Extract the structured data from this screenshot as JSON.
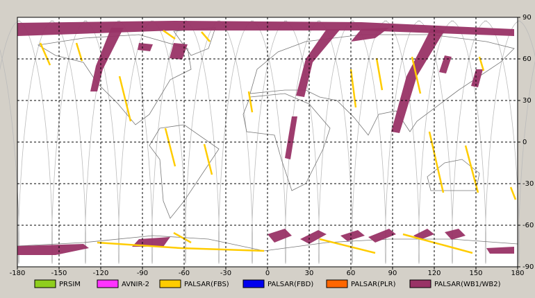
{
  "chart_data": {
    "type": "map",
    "xlim": [
      -180,
      180
    ],
    "ylim": [
      -90,
      90
    ],
    "xticks": [
      -180,
      -150,
      -120,
      -90,
      -60,
      -30,
      0,
      30,
      60,
      90,
      120,
      150,
      180
    ],
    "yticks": [
      -90,
      -60,
      -30,
      0,
      30,
      60,
      90
    ],
    "grid": true,
    "series": [
      {
        "name": "PRSIM",
        "color": "#8fce1e"
      },
      {
        "name": "AVNIR-2",
        "color": "#ff33ff"
      },
      {
        "name": "PALSAR(FBS)",
        "color": "#ffcc00"
      },
      {
        "name": "PALSAR(FBD)",
        "color": "#0000ee"
      },
      {
        "name": "PALSAR(PLR)",
        "color": "#ff6600"
      },
      {
        "name": "PALSAR(WB1/WB2)",
        "color": "#993366"
      }
    ]
  }
}
